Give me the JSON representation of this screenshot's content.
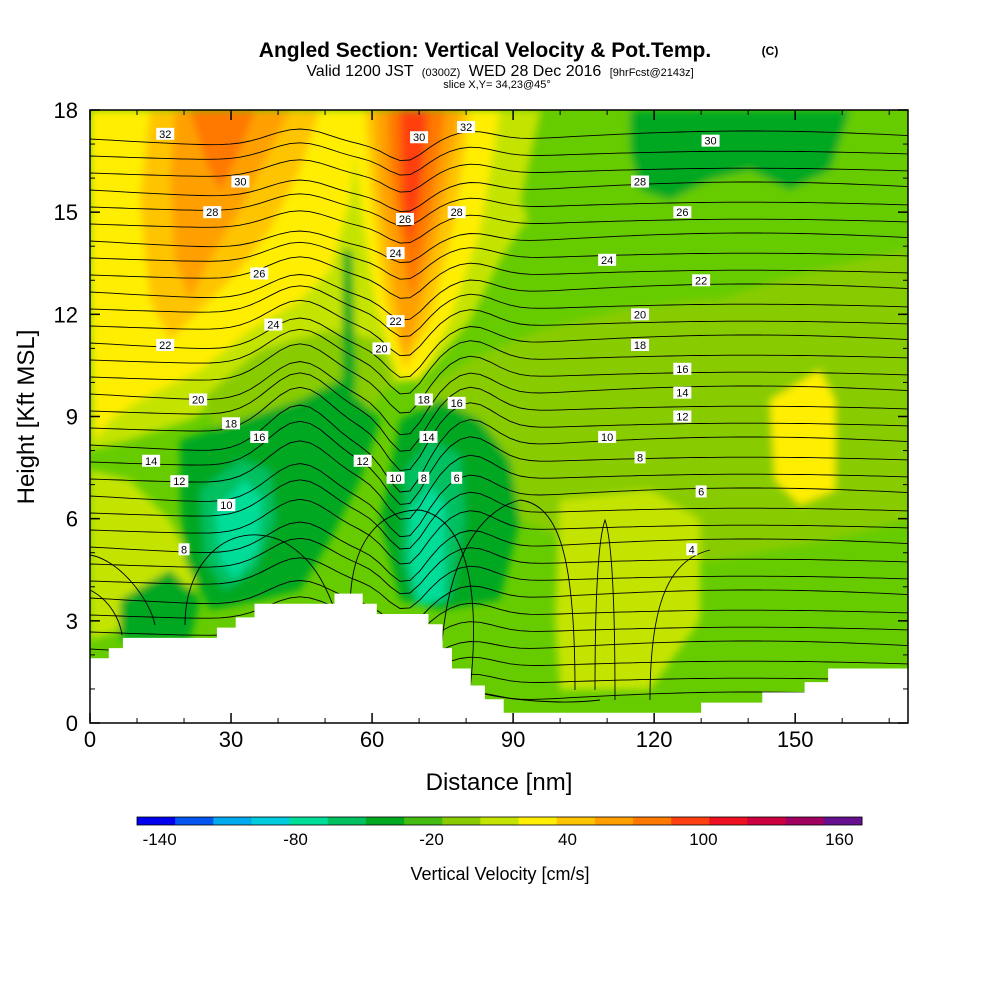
{
  "chart_data": {
    "type": "heatmap",
    "title": "Angled Section: Vertical Velocity & Pot.Temp.",
    "title_unit": "(C)",
    "valid_line": {
      "prefix": "Valid 1200 JST",
      "utc": "(0300Z)",
      "date": "WED 28 Dec 2016",
      "forecast": "[9hrFcst@2143z]"
    },
    "slice_label": "slice X,Y= 34,23@45°",
    "xlabel": "Distance [nm]",
    "ylabel": "Height [Kft MSL]",
    "xlim": [
      0,
      174
    ],
    "ylim": [
      0,
      18
    ],
    "x_ticks": [
      "0",
      "30",
      "60",
      "90",
      "120",
      "150"
    ],
    "x_tick_values": [
      0,
      30,
      60,
      90,
      120,
      150
    ],
    "y_ticks": [
      "0",
      "3",
      "6",
      "9",
      "12",
      "15",
      "18"
    ],
    "y_tick_values": [
      0,
      3,
      6,
      9,
      12,
      15,
      18
    ],
    "colorbar": {
      "label": "Vertical Velocity [cm/s]",
      "range": [
        -150,
        170
      ],
      "step": 20,
      "tick_labels": [
        "-140",
        "-80",
        "-20",
        "40",
        "100",
        "160"
      ],
      "tick_values": [
        -140,
        -80,
        -20,
        40,
        100,
        160
      ],
      "colors": [
        "#0000ee",
        "#0055ee",
        "#00a8ee",
        "#00ccdd",
        "#00dd99",
        "#00c060",
        "#00a820",
        "#44bb10",
        "#88cc00",
        "#c4e400",
        "#ffee00",
        "#ffc400",
        "#ffa000",
        "#ff7800",
        "#ff4010",
        "#ee1020",
        "#cc0040",
        "#a00060",
        "#661090"
      ]
    },
    "terrain": [
      [
        0,
        1.9
      ],
      [
        4,
        1.9
      ],
      [
        4,
        2.2
      ],
      [
        7,
        2.2
      ],
      [
        7,
        2.5
      ],
      [
        27,
        2.5
      ],
      [
        27,
        2.8
      ],
      [
        31,
        2.8
      ],
      [
        31,
        3.1
      ],
      [
        35,
        3.1
      ],
      [
        35,
        3.5
      ],
      [
        52,
        3.5
      ],
      [
        52,
        3.8
      ],
      [
        58,
        3.8
      ],
      [
        58,
        3.5
      ],
      [
        61,
        3.5
      ],
      [
        61,
        3.2
      ],
      [
        72,
        3.2
      ],
      [
        72,
        2.9
      ],
      [
        75,
        2.9
      ],
      [
        75,
        2.2
      ],
      [
        77,
        2.2
      ],
      [
        77,
        1.6
      ],
      [
        81,
        1.6
      ],
      [
        81,
        1.1
      ],
      [
        84,
        1.1
      ],
      [
        84,
        0.7
      ],
      [
        88,
        0.7
      ],
      [
        88,
        0.3
      ],
      [
        130,
        0.3
      ],
      [
        130,
        0.6
      ],
      [
        143,
        0.6
      ],
      [
        143,
        0.9
      ],
      [
        152,
        0.9
      ],
      [
        152,
        1.2
      ],
      [
        157,
        1.2
      ],
      [
        157,
        1.6
      ],
      [
        174,
        1.6
      ]
    ],
    "contour_labels": [
      {
        "text": "32",
        "x": 16,
        "y": 17.3
      },
      {
        "text": "30",
        "x": 32,
        "y": 15.9
      },
      {
        "text": "28",
        "x": 26,
        "y": 15.0
      },
      {
        "text": "26",
        "x": 36,
        "y": 13.2
      },
      {
        "text": "24",
        "x": 39,
        "y": 11.7
      },
      {
        "text": "22",
        "x": 16,
        "y": 11.1
      },
      {
        "text": "20",
        "x": 23,
        "y": 9.5
      },
      {
        "text": "18",
        "x": 30,
        "y": 8.8
      },
      {
        "text": "16",
        "x": 36,
        "y": 8.4
      },
      {
        "text": "14",
        "x": 13,
        "y": 7.7
      },
      {
        "text": "12",
        "x": 19,
        "y": 7.1
      },
      {
        "text": "10",
        "x": 29,
        "y": 6.4
      },
      {
        "text": "8",
        "x": 20,
        "y": 5.1
      },
      {
        "text": "32",
        "x": 80,
        "y": 17.5
      },
      {
        "text": "30",
        "x": 70,
        "y": 17.2
      },
      {
        "text": "28",
        "x": 78,
        "y": 15.0
      },
      {
        "text": "26",
        "x": 67,
        "y": 14.8
      },
      {
        "text": "24",
        "x": 65,
        "y": 13.8
      },
      {
        "text": "22",
        "x": 65,
        "y": 11.8
      },
      {
        "text": "20",
        "x": 62,
        "y": 11.0
      },
      {
        "text": "18",
        "x": 71,
        "y": 9.5
      },
      {
        "text": "16",
        "x": 78,
        "y": 9.4
      },
      {
        "text": "14",
        "x": 72,
        "y": 8.4
      },
      {
        "text": "12",
        "x": 58,
        "y": 7.7
      },
      {
        "text": "10",
        "x": 65,
        "y": 7.2
      },
      {
        "text": "8",
        "x": 71,
        "y": 7.2
      },
      {
        "text": "6",
        "x": 78,
        "y": 7.2
      },
      {
        "text": "30",
        "x": 132,
        "y": 17.1
      },
      {
        "text": "28",
        "x": 117,
        "y": 15.9
      },
      {
        "text": "26",
        "x": 126,
        "y": 15.0
      },
      {
        "text": "24",
        "x": 110,
        "y": 13.6
      },
      {
        "text": "22",
        "x": 130,
        "y": 13.0
      },
      {
        "text": "20",
        "x": 117,
        "y": 12.0
      },
      {
        "text": "18",
        "x": 117,
        "y": 11.1
      },
      {
        "text": "16",
        "x": 126,
        "y": 10.4
      },
      {
        "text": "14",
        "x": 126,
        "y": 9.7
      },
      {
        "text": "12",
        "x": 126,
        "y": 9.0
      },
      {
        "text": "10",
        "x": 110,
        "y": 8.4
      },
      {
        "text": "8",
        "x": 117,
        "y": 7.8
      },
      {
        "text": "6",
        "x": 130,
        "y": 6.8
      },
      {
        "text": "4",
        "x": 128,
        "y": 5.1
      }
    ]
  }
}
